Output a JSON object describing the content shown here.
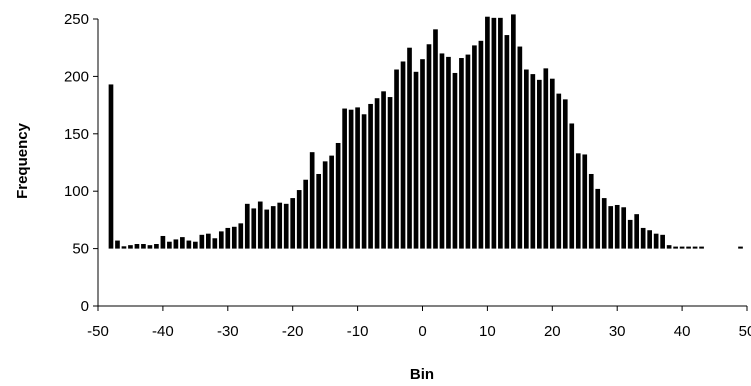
{
  "chart_data": {
    "type": "bar",
    "title": "",
    "xlabel": "Bin",
    "ylabel": "Frequency",
    "xlim": [
      -50,
      50
    ],
    "ylim": [
      0,
      250
    ],
    "baseline": 50,
    "grid": false,
    "x_ticks": [
      "-50",
      "-40",
      "-30",
      "-20",
      "-10",
      "0",
      "10",
      "20",
      "30",
      "40",
      "50"
    ],
    "y_ticks": [
      "0",
      "50",
      "100",
      "150",
      "200",
      "250"
    ],
    "x": [
      -48,
      -47,
      -46,
      -45,
      -44,
      -43,
      -42,
      -41,
      -40,
      -39,
      -38,
      -37,
      -36,
      -35,
      -34,
      -33,
      -32,
      -31,
      -30,
      -29,
      -28,
      -27,
      -26,
      -25,
      -24,
      -23,
      -22,
      -21,
      -20,
      -19,
      -18,
      -17,
      -16,
      -15,
      -14,
      -13,
      -12,
      -11,
      -10,
      -9,
      -8,
      -7,
      -6,
      -5,
      -4,
      -3,
      -2,
      -1,
      0,
      1,
      2,
      3,
      4,
      5,
      6,
      7,
      8,
      9,
      10,
      11,
      12,
      13,
      14,
      15,
      16,
      17,
      18,
      19,
      20,
      21,
      22,
      23,
      24,
      25,
      26,
      27,
      28,
      29,
      30,
      31,
      32,
      33,
      34,
      35,
      36,
      37,
      38,
      39,
      40,
      41,
      42,
      43,
      49
    ],
    "values": [
      193,
      57,
      52,
      53,
      54,
      54,
      53,
      54,
      61,
      56,
      58,
      60,
      57,
      56,
      62,
      63,
      59,
      65,
      68,
      69,
      72,
      89,
      85,
      91,
      84,
      87,
      90,
      89,
      94,
      101,
      110,
      134,
      115,
      126,
      131,
      142,
      172,
      171,
      173,
      167,
      176,
      181,
      187,
      182,
      206,
      213,
      225,
      204,
      215,
      228,
      241,
      220,
      217,
      203,
      216,
      219,
      227,
      231,
      252,
      251,
      251,
      236,
      254,
      226,
      206,
      202,
      197,
      207,
      198,
      185,
      180,
      159,
      133,
      132,
      115,
      102,
      94,
      87,
      88,
      86,
      75,
      80,
      68,
      66,
      63,
      62,
      53,
      51,
      50,
      50,
      49,
      49,
      49
    ]
  }
}
